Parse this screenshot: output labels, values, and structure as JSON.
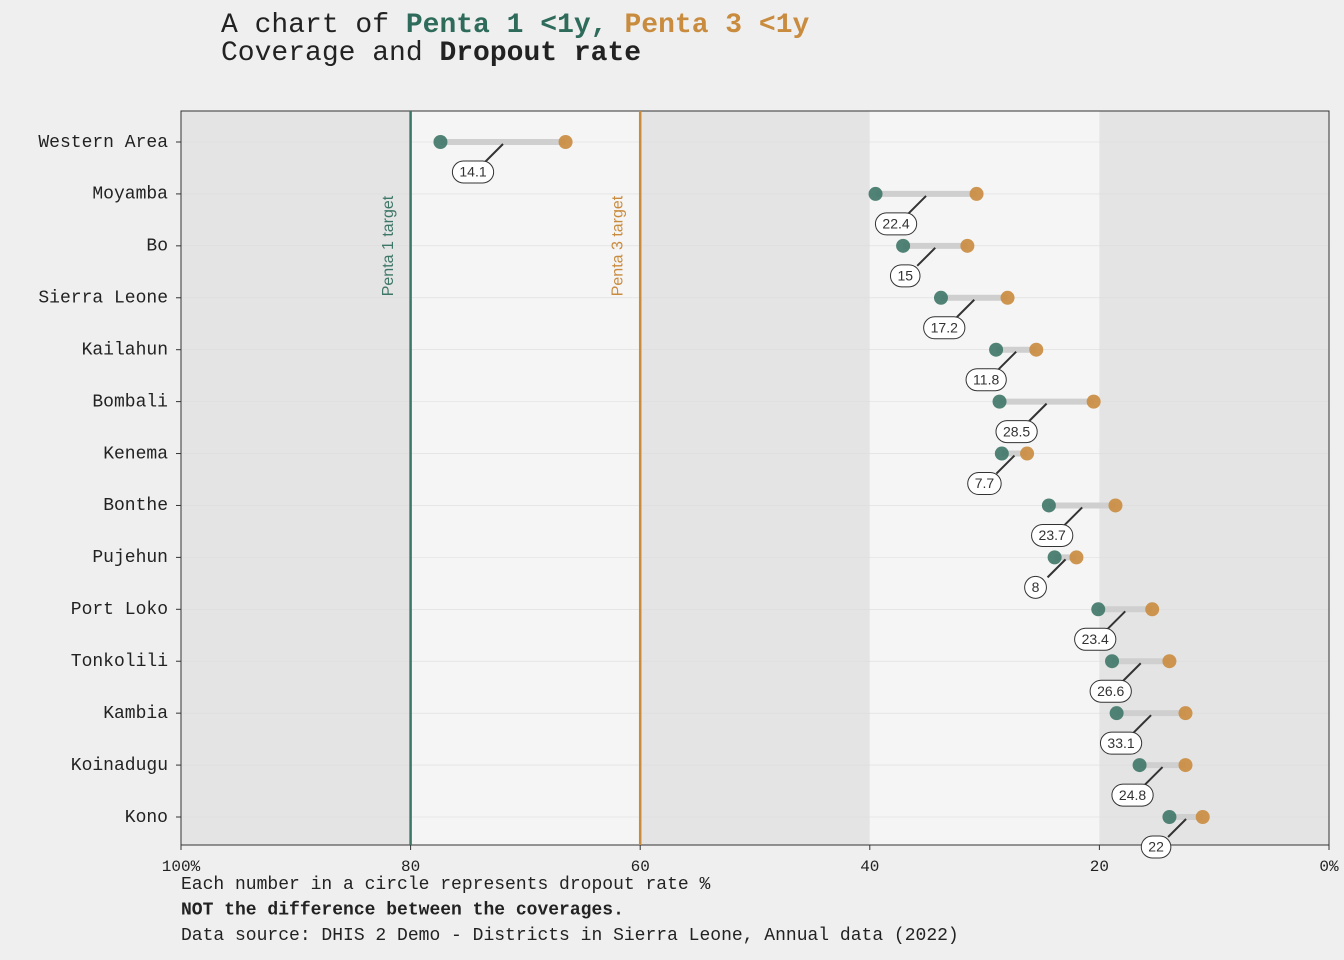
{
  "chart_data": {
    "type": "dumbbell",
    "title": [
      {
        "text": "A chart of ",
        "bold": false,
        "color": "#222222"
      },
      {
        "text": "Penta 1 <1y,",
        "bold": true,
        "color": "#2e6b5a"
      },
      {
        "text": "Penta 3 <1y",
        "bold": true,
        "color": "#c98b3e"
      }
    ],
    "subtitle": [
      {
        "text": "Coverage and ",
        "bold": false
      },
      {
        "text": "Dropout rate",
        "bold": true
      }
    ],
    "categories": [
      "Western Area",
      "Moyamba",
      "Bo",
      "Sierra Leone",
      "Kailahun",
      "Bombali",
      "Kenema",
      "Bonthe",
      "Pujehun",
      "Port Loko",
      "Tonkolili",
      "Kambia",
      "Koinadugu",
      "Kono"
    ],
    "series": [
      {
        "name": "Penta 1 <1y",
        "color": "#3e7767",
        "values": [
          77.4,
          39.5,
          37.1,
          33.8,
          29.0,
          28.7,
          28.5,
          24.4,
          23.9,
          20.1,
          18.9,
          18.5,
          16.5,
          13.9
        ]
      },
      {
        "name": "Penta 3 <1y",
        "color": "#c98b3e",
        "values": [
          66.5,
          30.7,
          31.5,
          28.0,
          25.5,
          20.5,
          26.3,
          18.6,
          22.0,
          15.4,
          13.9,
          12.5,
          12.5,
          11.0
        ]
      }
    ],
    "dropout": [
      14.1,
      22.4,
      15,
      17.2,
      11.8,
      28.5,
      7.7,
      23.7,
      8,
      23.4,
      26.6,
      33.1,
      24.8,
      22
    ],
    "targets": [
      {
        "text": "Penta 1 target",
        "value": 80,
        "color": "#3e7767"
      },
      {
        "text": "Penta 3 target",
        "value": 60,
        "color": "#c98b3e"
      }
    ],
    "xlim": [
      100,
      0
    ],
    "xticks": [
      {
        "value": 100,
        "label": "100%"
      },
      80,
      60,
      40,
      20,
      {
        "value": 0,
        "label": "0%"
      }
    ],
    "caption": [
      {
        "text": "Each number in a circle represents dropout rate %",
        "bold": false
      },
      {
        "text": "NOT the difference between the coverages.",
        "bold": true
      },
      {
        "text": "Data source: DHIS 2 Demo - Districts in Sierra Leone, Annual data (2022)",
        "bold": false
      }
    ]
  }
}
